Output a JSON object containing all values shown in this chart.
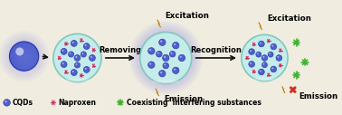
{
  "bg_color": "#f0ece0",
  "circle_bg": "#c5ecea",
  "circle_border": "#80c8bc",
  "cqd_color": "#5060cc",
  "cqd_edge": "#2030a0",
  "naproxen_color": "#cc3060",
  "interfering_color": "#40b030",
  "glow_color": "#a0a0e8",
  "arrow_color": "#111111",
  "lightning_color": "#f0b800",
  "lightning_edge": "#c08000",
  "xmark_color": "#d03020",
  "sphere_color": "#5060cc",
  "sphere_edge": "#2030a0",
  "arrow_label1": "Removing",
  "arrow_label2": "Recognition",
  "text_excitation1": "Excitation",
  "text_emission1": "Emission",
  "text_excitation2": "Excitation",
  "text_emission2": "Emission",
  "legend_cqd": "CQDs",
  "legend_nap": "Naproxen",
  "legend_int": "Coexisting  interfering substances",
  "label_fontsize": 5.5,
  "arrow_fontsize": 6.0,
  "exc_fontsize": 6.2
}
